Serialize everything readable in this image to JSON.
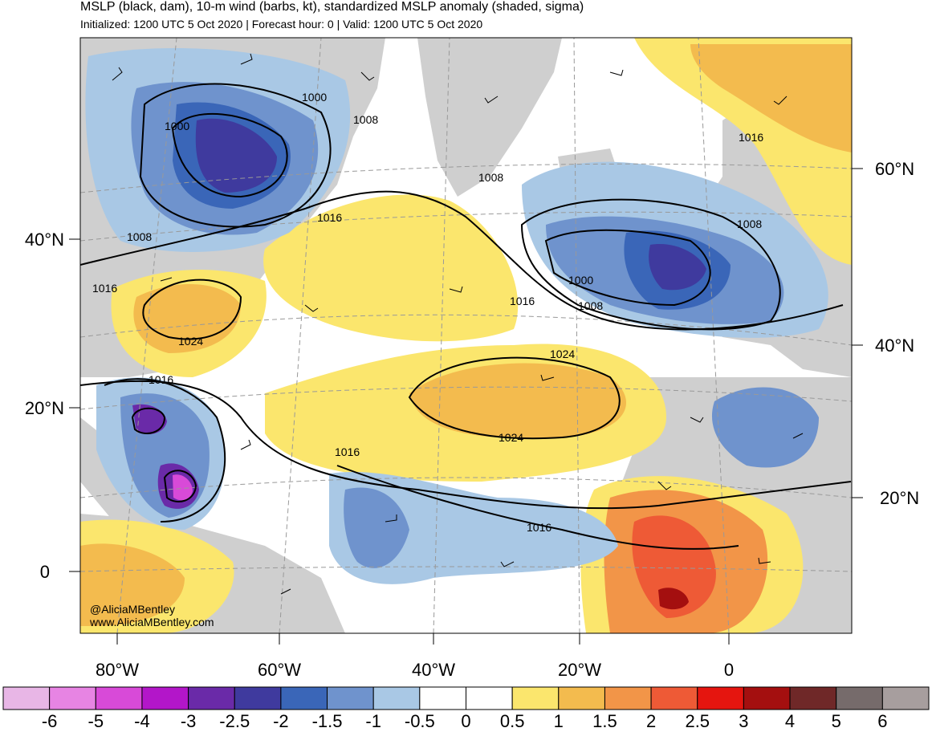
{
  "header": {
    "title": "MSLP (black, dam), 10-m wind (barbs, kt), standardized MSLP anomaly (shaded, sigma)",
    "subtitle": "Initialized: 1200 UTC 5 Oct 2020 | Forecast hour: 0 | Valid: 1200 UTC 5 Oct 2020"
  },
  "axes": {
    "left_lat_labels": [
      "40°N",
      "20°N",
      "0"
    ],
    "right_lat_labels": [
      "60°N",
      "40°N",
      "20°N"
    ],
    "bottom_lon_labels": [
      "80°W",
      "60°W",
      "40°W",
      "20°W",
      "0"
    ]
  },
  "contour_labels": [
    "1000",
    "1008",
    "1000",
    "1008",
    "1016",
    "1008",
    "1016",
    "1024",
    "1016",
    "1016",
    "1008",
    "1000",
    "1008",
    "1016",
    "1024",
    "1024",
    "1016",
    "1016"
  ],
  "credit": {
    "handle": "@AliciaMBentley",
    "site": "www.AliciaMBentley.com"
  },
  "colorbar": {
    "colors": [
      "#e8b6e6",
      "#e784e3",
      "#d84ad8",
      "#b316c9",
      "#6a2aa8",
      "#3f3a9e",
      "#3a66b8",
      "#6f93cd",
      "#a9c8e5",
      "#ffffff",
      "#ffffff",
      "#fbe66d",
      "#f3bb4e",
      "#f29548",
      "#ee5a36",
      "#e5150f",
      "#a40f0f",
      "#6f2828",
      "#766b6b",
      "#a79e9e"
    ],
    "labels": [
      "-6",
      "-5",
      "-4",
      "-3",
      "-2.5",
      "-2",
      "-1.5",
      "-1",
      "-0.5",
      "0",
      "0.5",
      "1",
      "1.5",
      "2",
      "2.5",
      "3",
      "4",
      "5",
      "6"
    ]
  },
  "colors": {
    "land": "#cfcfcf",
    "ocean": "#ffffff",
    "contour": "#000000",
    "grid": "#999999"
  }
}
